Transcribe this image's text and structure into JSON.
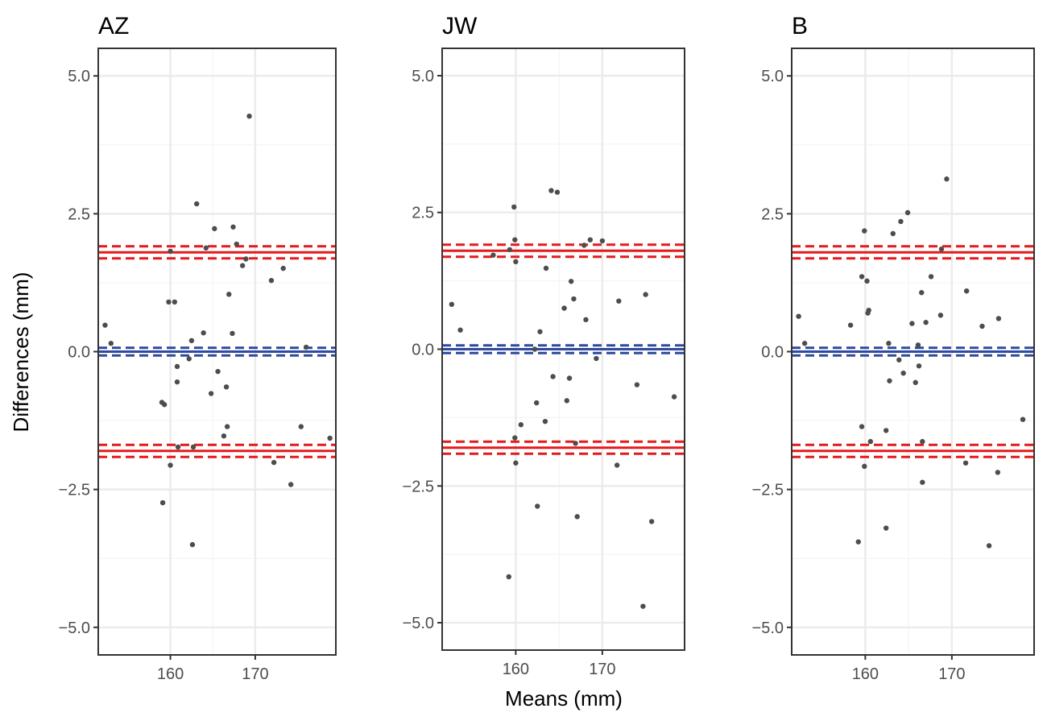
{
  "chart_data": {
    "type": "scatter",
    "xlabel": "Means (mm)",
    "ylabel": "Differences (mm)",
    "colors": {
      "points": "#4d4d4d",
      "bias_line": "#2e4a9e",
      "limits_line": "#e41a1c",
      "grid_major": "#ebebeb",
      "grid_minor": "#f4f4f4",
      "panel_border": "#333333"
    },
    "panels": [
      {
        "title": "AZ",
        "xlim": [
          151.5,
          179.5
        ],
        "ylim": [
          -5.5,
          5.5
        ],
        "xticks": [
          160,
          170
        ],
        "xticklabels": [
          "160",
          "170"
        ],
        "yticks": [
          -5,
          -2.5,
          0,
          2.5,
          5
        ],
        "yticklabels": [
          "−5.0",
          "−2.5",
          "0.0",
          "2.5",
          "5.0"
        ],
        "bias": {
          "value": 0.0,
          "ci": [
            -0.07,
            0.07
          ]
        },
        "upper_loa": {
          "value": 1.8,
          "ci": [
            1.69,
            1.91
          ]
        },
        "lower_loa": {
          "value": -1.8,
          "ci": [
            -1.91,
            -1.69
          ]
        },
        "points": [
          [
            152.3,
            0.48
          ],
          [
            153.0,
            0.15
          ],
          [
            159.0,
            -0.92
          ],
          [
            159.3,
            -0.96
          ],
          [
            159.1,
            -2.74
          ],
          [
            159.8,
            0.9
          ],
          [
            160.0,
            1.82
          ],
          [
            160.0,
            -2.06
          ],
          [
            160.5,
            0.9
          ],
          [
            160.9,
            -1.73
          ],
          [
            160.8,
            -0.27
          ],
          [
            160.8,
            -0.55
          ],
          [
            162.2,
            -0.13
          ],
          [
            162.5,
            0.2
          ],
          [
            162.7,
            -1.73
          ],
          [
            162.6,
            -3.5
          ],
          [
            163.1,
            2.68
          ],
          [
            163.9,
            0.34
          ],
          [
            164.2,
            1.88
          ],
          [
            164.8,
            -0.76
          ],
          [
            165.2,
            2.23
          ],
          [
            165.6,
            -0.36
          ],
          [
            166.3,
            -1.53
          ],
          [
            166.6,
            -0.64
          ],
          [
            166.7,
            -1.36
          ],
          [
            166.9,
            1.04
          ],
          [
            167.3,
            0.33
          ],
          [
            167.4,
            2.26
          ],
          [
            167.8,
            1.95
          ],
          [
            168.5,
            1.56
          ],
          [
            168.9,
            1.68
          ],
          [
            169.3,
            4.27
          ],
          [
            171.9,
            1.29
          ],
          [
            172.2,
            -2.01
          ],
          [
            173.3,
            1.51
          ],
          [
            174.2,
            -2.41
          ],
          [
            175.4,
            -1.36
          ],
          [
            176.0,
            0.08
          ],
          [
            178.8,
            -1.57
          ]
        ]
      },
      {
        "title": "JW",
        "xlim": [
          151.5,
          179.5
        ],
        "ylim": [
          -5.5,
          5.5
        ],
        "xticks": [
          160,
          170
        ],
        "xticklabels": [
          "160",
          "170"
        ],
        "yticks": [
          -5,
          -2.5,
          0,
          2.5,
          5
        ],
        "yticklabels": [
          "−5.0",
          "−2.5",
          "0.0",
          "2.5",
          "5.0"
        ],
        "bias": {
          "value": 0.0,
          "ci": [
            -0.07,
            0.07
          ]
        },
        "upper_loa": {
          "value": 1.8,
          "ci": [
            1.69,
            1.91
          ]
        },
        "lower_loa": {
          "value": -1.8,
          "ci": [
            -1.91,
            -1.69
          ]
        },
        "points": [
          [
            152.6,
            0.82
          ],
          [
            153.6,
            0.35
          ],
          [
            157.4,
            1.72
          ],
          [
            159.2,
            -4.16
          ],
          [
            159.3,
            1.82
          ],
          [
            159.8,
            2.6
          ],
          [
            159.9,
            2.0
          ],
          [
            159.9,
            -1.62
          ],
          [
            160.0,
            -2.08
          ],
          [
            160.0,
            1.6
          ],
          [
            160.6,
            -1.38
          ],
          [
            162.4,
            -0.98
          ],
          [
            162.5,
            -2.87
          ],
          [
            162.8,
            0.32
          ],
          [
            162.2,
            0.0
          ],
          [
            163.4,
            -1.32
          ],
          [
            163.5,
            1.48
          ],
          [
            164.1,
            2.9
          ],
          [
            164.3,
            -0.5
          ],
          [
            164.8,
            2.87
          ],
          [
            165.6,
            0.75
          ],
          [
            165.9,
            -0.94
          ],
          [
            166.2,
            -0.53
          ],
          [
            166.4,
            1.24
          ],
          [
            166.7,
            0.92
          ],
          [
            166.9,
            -1.72
          ],
          [
            167.1,
            -3.06
          ],
          [
            167.9,
            1.9
          ],
          [
            168.1,
            0.54
          ],
          [
            168.6,
            2.0
          ],
          [
            169.3,
            -0.17
          ],
          [
            170.0,
            1.98
          ],
          [
            171.7,
            -2.12
          ],
          [
            171.9,
            0.88
          ],
          [
            174.0,
            -0.65
          ],
          [
            174.7,
            -4.7
          ],
          [
            175.0,
            1.0
          ],
          [
            175.7,
            -3.15
          ],
          [
            178.3,
            -0.87
          ]
        ]
      },
      {
        "title": "B",
        "xlim": [
          151.5,
          179.5
        ],
        "ylim": [
          -5.5,
          5.5
        ],
        "xticks": [
          160,
          170
        ],
        "xticklabels": [
          "160",
          "170"
        ],
        "yticks": [
          -5,
          -2.5,
          0,
          2.5,
          5
        ],
        "yticklabels": [
          "−5.0",
          "−2.5",
          "0.0",
          "2.5",
          "5.0"
        ],
        "bias": {
          "value": 0.0,
          "ci": [
            -0.07,
            0.07
          ]
        },
        "upper_loa": {
          "value": 1.8,
          "ci": [
            1.69,
            1.91
          ]
        },
        "lower_loa": {
          "value": -1.8,
          "ci": [
            -1.91,
            -1.69
          ]
        },
        "points": [
          [
            152.3,
            0.64
          ],
          [
            153.0,
            0.15
          ],
          [
            158.3,
            0.48
          ],
          [
            159.2,
            -3.45
          ],
          [
            159.6,
            1.36
          ],
          [
            159.6,
            -1.36
          ],
          [
            159.9,
            2.19
          ],
          [
            159.9,
            -2.08
          ],
          [
            160.2,
            1.28
          ],
          [
            160.3,
            0.7
          ],
          [
            160.4,
            0.75
          ],
          [
            160.6,
            -1.63
          ],
          [
            162.4,
            -1.43
          ],
          [
            162.4,
            -3.2
          ],
          [
            162.7,
            0.15
          ],
          [
            162.8,
            -0.53
          ],
          [
            163.2,
            2.14
          ],
          [
            163.9,
            -0.15
          ],
          [
            164.1,
            2.36
          ],
          [
            164.4,
            -0.39
          ],
          [
            164.9,
            2.52
          ],
          [
            165.4,
            0.51
          ],
          [
            165.8,
            -0.56
          ],
          [
            166.1,
            0.12
          ],
          [
            166.2,
            -0.26
          ],
          [
            166.5,
            1.07
          ],
          [
            166.6,
            -1.63
          ],
          [
            166.6,
            -2.37
          ],
          [
            167.0,
            0.53
          ],
          [
            167.6,
            1.36
          ],
          [
            168.8,
            1.86
          ],
          [
            168.7,
            0.66
          ],
          [
            169.4,
            3.13
          ],
          [
            171.6,
            -2.02
          ],
          [
            171.7,
            1.1
          ],
          [
            173.5,
            0.46
          ],
          [
            174.3,
            -3.52
          ],
          [
            175.3,
            -2.19
          ],
          [
            175.4,
            0.6
          ],
          [
            178.2,
            -1.23
          ]
        ]
      }
    ]
  }
}
